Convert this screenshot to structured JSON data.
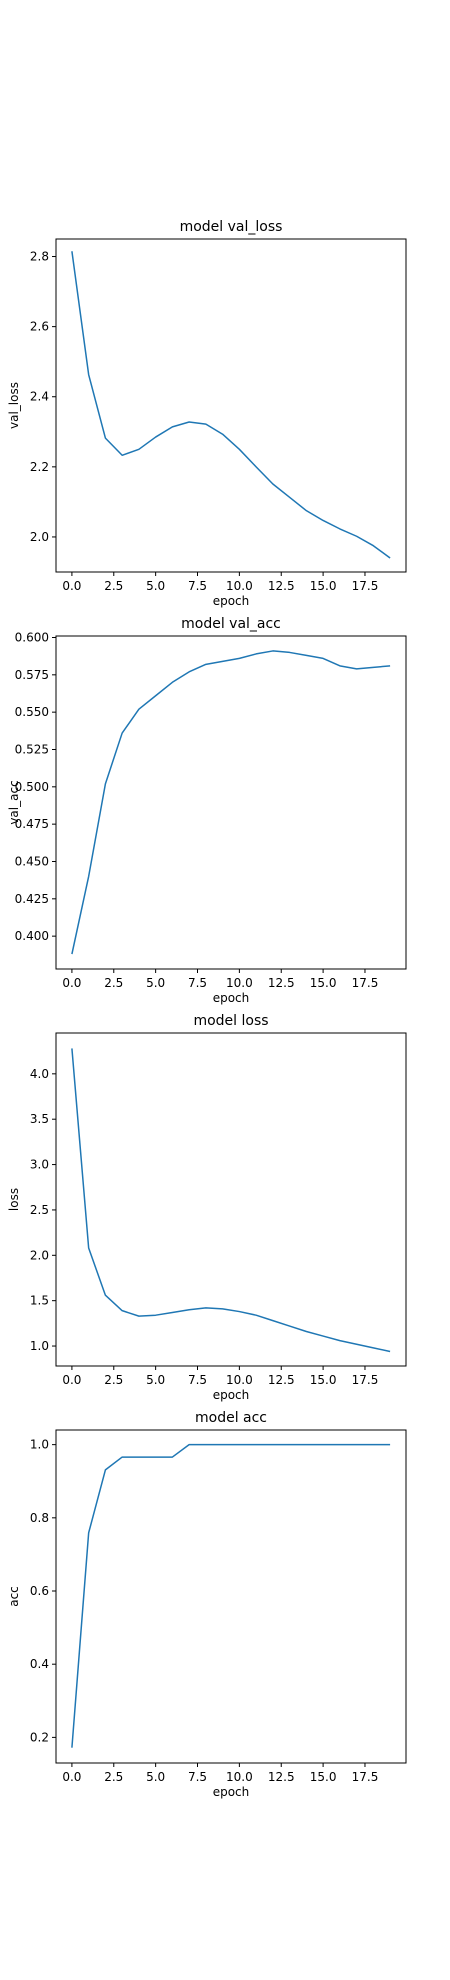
{
  "chart_data": [
    {
      "type": "line",
      "title": "model val_loss",
      "xlabel": "epoch",
      "ylabel": "val_loss",
      "xlim": [
        -0.95,
        19.95
      ],
      "ylim": [
        1.9,
        2.85
      ],
      "x_ticks": [
        0,
        2.5,
        5,
        7.5,
        10,
        12.5,
        15,
        17.5
      ],
      "x_tick_labels": [
        "0.0",
        "2.5",
        "5.0",
        "7.5",
        "10.0",
        "12.5",
        "15.0",
        "17.5"
      ],
      "y_ticks": [
        2.0,
        2.2,
        2.4,
        2.6,
        2.8
      ],
      "y_tick_labels": [
        "2.0",
        "2.2",
        "2.4",
        "2.6",
        "2.8"
      ],
      "grid": false,
      "series": [
        {
          "color": "#1f77b4",
          "x": [
            0,
            1,
            2,
            3,
            4,
            5,
            6,
            7,
            8,
            9,
            10,
            11,
            12,
            13,
            14,
            15,
            16,
            17,
            18,
            19
          ],
          "y": [
            2.815,
            2.463,
            2.282,
            2.233,
            2.25,
            2.285,
            2.314,
            2.328,
            2.322,
            2.293,
            2.25,
            2.2,
            2.151,
            2.113,
            2.075,
            2.047,
            2.023,
            2.002,
            1.975,
            1.94
          ]
        }
      ]
    },
    {
      "type": "line",
      "title": "model val_acc",
      "xlabel": "epoch",
      "ylabel": "val_acc",
      "xlim": [
        -0.95,
        19.95
      ],
      "ylim": [
        0.378,
        0.601
      ],
      "x_ticks": [
        0,
        2.5,
        5,
        7.5,
        10,
        12.5,
        15,
        17.5
      ],
      "x_tick_labels": [
        "0.0",
        "2.5",
        "5.0",
        "7.5",
        "10.0",
        "12.5",
        "15.0",
        "17.5"
      ],
      "y_ticks": [
        0.4,
        0.425,
        0.45,
        0.475,
        0.5,
        0.525,
        0.55,
        0.575,
        0.6
      ],
      "y_tick_labels": [
        "0.400",
        "0.425",
        "0.450",
        "0.475",
        "0.500",
        "0.525",
        "0.550",
        "0.575",
        "0.600"
      ],
      "grid": false,
      "series": [
        {
          "color": "#1f77b4",
          "x": [
            0,
            1,
            2,
            3,
            4,
            5,
            6,
            7,
            8,
            9,
            10,
            11,
            12,
            13,
            14,
            15,
            16,
            17,
            18,
            19
          ],
          "y": [
            0.388,
            0.44,
            0.502,
            0.536,
            0.552,
            0.561,
            0.57,
            0.577,
            0.582,
            0.584,
            0.586,
            0.589,
            0.591,
            0.59,
            0.588,
            0.586,
            0.581,
            0.579,
            0.58,
            0.581
          ]
        }
      ]
    },
    {
      "type": "line",
      "title": "model loss",
      "xlabel": "epoch",
      "ylabel": "loss",
      "xlim": [
        -0.95,
        19.95
      ],
      "ylim": [
        0.78,
        4.45
      ],
      "x_ticks": [
        0,
        2.5,
        5,
        7.5,
        10,
        12.5,
        15,
        17.5
      ],
      "x_tick_labels": [
        "0.0",
        "2.5",
        "5.0",
        "7.5",
        "10.0",
        "12.5",
        "15.0",
        "17.5"
      ],
      "y_ticks": [
        1.0,
        1.5,
        2.0,
        2.5,
        3.0,
        3.5,
        4.0
      ],
      "y_tick_labels": [
        "1.0",
        "1.5",
        "2.0",
        "2.5",
        "3.0",
        "3.5",
        "4.0"
      ],
      "grid": false,
      "series": [
        {
          "color": "#1f77b4",
          "x": [
            0,
            1,
            2,
            3,
            4,
            5,
            6,
            7,
            8,
            9,
            10,
            11,
            12,
            13,
            14,
            15,
            16,
            17,
            18,
            19
          ],
          "y": [
            4.28,
            2.08,
            1.56,
            1.39,
            1.33,
            1.34,
            1.37,
            1.4,
            1.42,
            1.41,
            1.38,
            1.34,
            1.28,
            1.22,
            1.16,
            1.11,
            1.06,
            1.02,
            0.98,
            0.94
          ]
        }
      ]
    },
    {
      "type": "line",
      "title": "model acc",
      "xlabel": "epoch",
      "ylabel": "acc",
      "xlim": [
        -0.95,
        19.95
      ],
      "ylim": [
        0.13,
        1.04
      ],
      "x_ticks": [
        0,
        2.5,
        5,
        7.5,
        10,
        12.5,
        15,
        17.5
      ],
      "x_tick_labels": [
        "0.0",
        "2.5",
        "5.0",
        "7.5",
        "10.0",
        "12.5",
        "15.0",
        "17.5"
      ],
      "y_ticks": [
        0.2,
        0.4,
        0.6,
        0.8,
        1.0
      ],
      "y_tick_labels": [
        "0.2",
        "0.4",
        "0.6",
        "0.8",
        "1.0"
      ],
      "grid": false,
      "series": [
        {
          "color": "#1f77b4",
          "x": [
            0,
            1,
            2,
            3,
            4,
            5,
            6,
            7,
            8,
            9,
            10,
            11,
            12,
            13,
            14,
            15,
            16,
            17,
            18,
            19
          ],
          "y": [
            0.172,
            0.759,
            0.931,
            0.966,
            0.966,
            0.966,
            0.966,
            1.0,
            1.0,
            1.0,
            1.0,
            1.0,
            1.0,
            1.0,
            1.0,
            1.0,
            1.0,
            1.0,
            1.0,
            1.0
          ]
        }
      ]
    }
  ]
}
